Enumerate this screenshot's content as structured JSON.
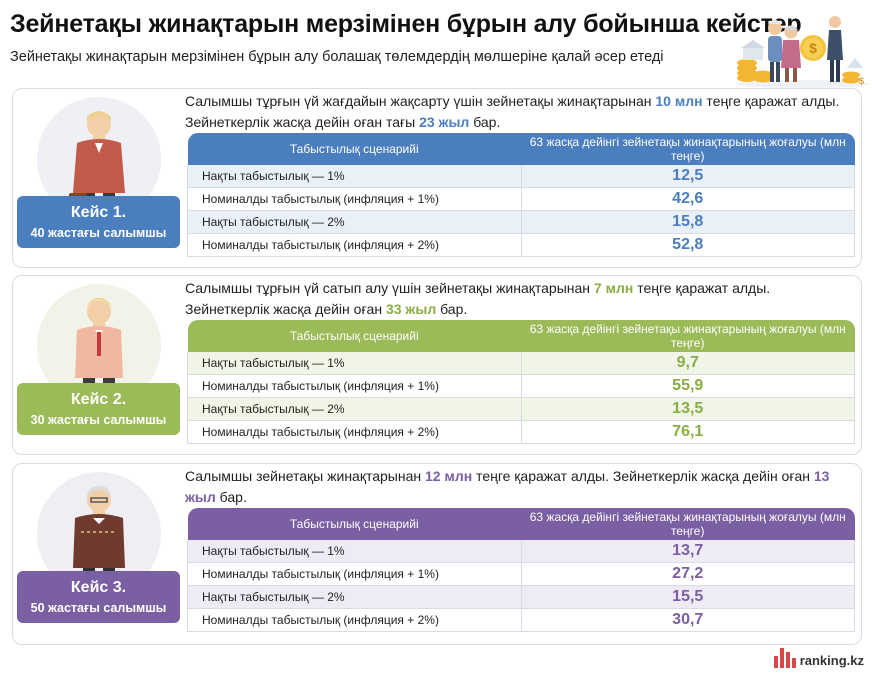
{
  "title": "Зейнетақы жинақтарын мерзімінен бұрын алу бойынша кейстер",
  "subtitle": "Зейнетақы жинақтарын мерзімінен бұрын алу болашақ төлемдердің мөлшеріне қалай әсер етеді",
  "table_headers": {
    "scenario": "Табыстылық сценарийі",
    "loss": "63 жасқа дейінгі зейнетақы жинақтарының жоғалуы (млн теңге)"
  },
  "cases": [
    {
      "badge_title": "Кейс 1.",
      "badge_sub": "40 жастағы салымшы",
      "desc_a": "Салымшы тұрғын үй жағдайын жақсарту үшін зейнетақы жинақтарынан ",
      "desc_hl1": "10 млн",
      "desc_b": " теңге қаражат алды. Зейнеткерлік жасқа дейін оған тағы ",
      "desc_hl2": "23 жыл",
      "desc_c": " бар.",
      "rows": [
        {
          "label": "Нақты табыстылық — 1%",
          "value": "12,5"
        },
        {
          "label": "Номиналды табыстылық (инфляция + 1%)",
          "value": "42,6"
        },
        {
          "label": "Нақты табыстылық — 2%",
          "value": "15,8"
        },
        {
          "label": "Номиналды табыстылық (инфляция + 2%)",
          "value": "52,8"
        }
      ]
    },
    {
      "badge_title": "Кейс 2.",
      "badge_sub": "30 жастағы салымшы",
      "desc_a": "Салымшы тұрғын үй сатып алу үшін зейнетақы жинақтарынан ",
      "desc_hl1": "7 млн",
      "desc_b": " теңге қаражат алды. Зейнеткерлік жасқа дейін оған ",
      "desc_hl2": "33 жыл",
      "desc_c": " бар.",
      "rows": [
        {
          "label": "Нақты табыстылық — 1%",
          "value": "9,7"
        },
        {
          "label": "Номиналды табыстылық (инфляция + 1%)",
          "value": "55,9"
        },
        {
          "label": "Нақты табыстылық — 2%",
          "value": "13,5"
        },
        {
          "label": "Номиналды табыстылық (инфляция + 2%)",
          "value": "76,1"
        }
      ]
    },
    {
      "badge_title": "Кейс 3.",
      "badge_sub": "50 жастағы салымшы",
      "desc_a": "Салымшы зейнетақы жинақтарынан ",
      "desc_hl1": "12 млн",
      "desc_b": " теңге қаражат алды. Зейнеткерлік жасқа дейін оған ",
      "desc_hl2": "13 жыл",
      "desc_c": " бар.",
      "rows": [
        {
          "label": "Нақты табыстылық — 1%",
          "value": "13,7"
        },
        {
          "label": "Номиналды табыстылық (инфляция + 1%)",
          "value": "27,2"
        },
        {
          "label": "Нақты табыстылық — 2%",
          "value": "15,5"
        },
        {
          "label": "Номиналды табыстылық (инфляция + 2%)",
          "value": "30,7"
        }
      ]
    }
  ],
  "logo_text": "ranking.kz",
  "colors": {
    "case1": "#4a7ebf",
    "case2": "#9bbb59",
    "case3": "#7b5fa3",
    "logo": "#d84848"
  }
}
